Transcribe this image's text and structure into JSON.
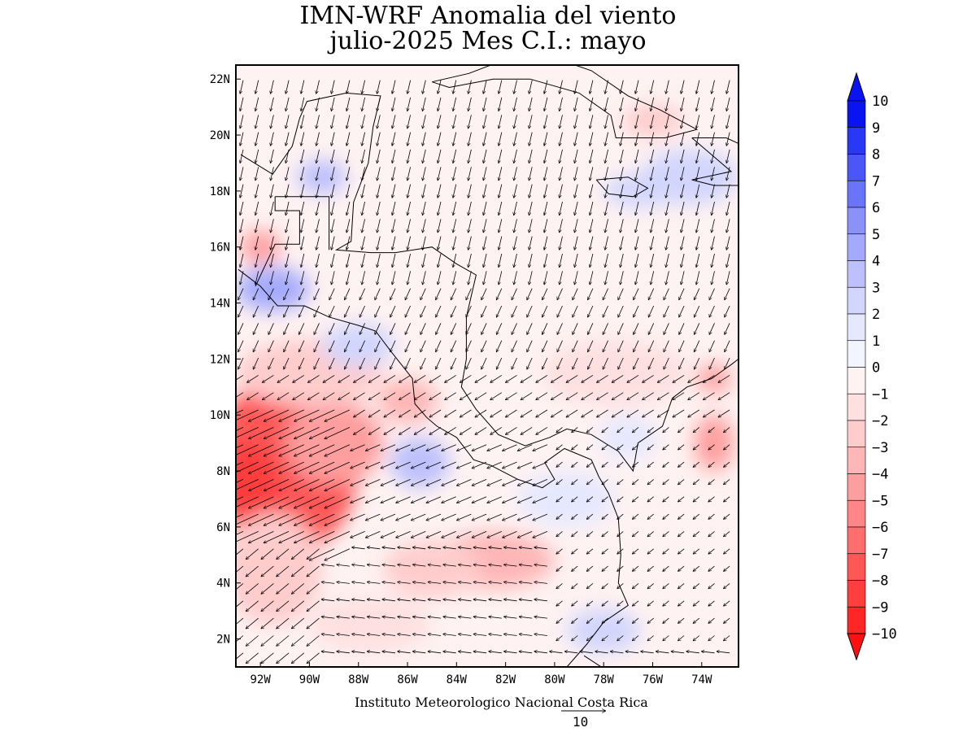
{
  "title_line1": "IMN-WRF Anomalia del viento",
  "title_line2": "julio-2025 Mes C.I.: mayo",
  "credit": "Instituto Meteorologico Nacional Costa Rica",
  "reference_vector": {
    "label": "10",
    "value": 10
  },
  "map": {
    "lon_range": [
      -93.0,
      -72.5
    ],
    "lat_range": [
      1.0,
      22.5
    ],
    "lon_ticks": [
      "92W",
      "90W",
      "88W",
      "86W",
      "84W",
      "82W",
      "80W",
      "78W",
      "76W",
      "74W"
    ],
    "lon_tick_values": [
      -92,
      -90,
      -88,
      -86,
      -84,
      -82,
      -80,
      -78,
      -76,
      -74
    ],
    "lat_ticks": [
      "2N",
      "4N",
      "6N",
      "8N",
      "10N",
      "12N",
      "14N",
      "16N",
      "18N",
      "20N",
      "22N"
    ],
    "lat_tick_values": [
      2,
      4,
      6,
      8,
      10,
      12,
      14,
      16,
      18,
      20,
      22
    ]
  },
  "colorbar": {
    "labels": [
      "10",
      "9",
      "8",
      "7",
      "6",
      "5",
      "4",
      "3",
      "2",
      "1",
      "0",
      "−1",
      "−2",
      "−3",
      "−4",
      "−5",
      "−6",
      "−7",
      "−8",
      "−9",
      "−10"
    ],
    "blue_colors": [
      "#0a14f0",
      "#2838f4",
      "#4a56f6",
      "#6a74f8",
      "#8a92fa",
      "#a4aafb",
      "#bcc0fc",
      "#d2d6fd",
      "#e6e8fe",
      "#f2f4ff"
    ],
    "red_colors": [
      "#fff2f2",
      "#ffe0e0",
      "#ffcccc",
      "#ffb6b6",
      "#ff9e9e",
      "#ff8686",
      "#ff6e6e",
      "#ff5656",
      "#ff3e3e",
      "#ff2626"
    ],
    "min_color": "#ff1010",
    "max_color": "#0a14f0"
  },
  "anomaly_patches": [
    {
      "lon": -91.0,
      "lat": 8.2,
      "rlon": 3.0,
      "rlat": 3.2,
      "value": -7
    },
    {
      "lon": -92.5,
      "lat": 7.5,
      "rlon": 1.2,
      "rlat": 1.5,
      "value": -8
    },
    {
      "lon": -89.0,
      "lat": 9.0,
      "rlon": 2.0,
      "rlat": 1.5,
      "value": -4
    },
    {
      "lon": -90.0,
      "lat": 11.5,
      "rlon": 3.0,
      "rlat": 1.2,
      "value": -2
    },
    {
      "lon": -91.5,
      "lat": 4.5,
      "rlon": 2.0,
      "rlat": 2.0,
      "value": -2
    },
    {
      "lon": -85.5,
      "lat": 8.3,
      "rlon": 1.2,
      "rlat": 0.9,
      "value": 3
    },
    {
      "lon": -91.5,
      "lat": 14.5,
      "rlon": 1.5,
      "rlat": 0.8,
      "value": 4
    },
    {
      "lon": -88.0,
      "lat": 12.5,
      "rlon": 1.5,
      "rlat": 0.8,
      "value": 2
    },
    {
      "lon": -86.0,
      "lat": 10.5,
      "rlon": 1.2,
      "rlat": 0.8,
      "value": -3
    },
    {
      "lon": -82.5,
      "lat": 4.8,
      "rlon": 2.5,
      "rlat": 1.0,
      "value": -3
    },
    {
      "lon": -85.0,
      "lat": 4.5,
      "rlon": 2.0,
      "rlat": 1.0,
      "value": -2
    },
    {
      "lon": -77.5,
      "lat": 11.5,
      "rlon": 3.0,
      "rlat": 1.2,
      "value": -1
    },
    {
      "lon": -73.5,
      "lat": 11.3,
      "rlon": 0.7,
      "rlat": 0.5,
      "value": -4
    },
    {
      "lon": -73.5,
      "lat": 9.0,
      "rlon": 0.8,
      "rlat": 1.0,
      "value": -4
    },
    {
      "lon": -77.0,
      "lat": 9.2,
      "rlon": 1.2,
      "rlat": 0.8,
      "value": 1
    },
    {
      "lon": -76.5,
      "lat": 18.0,
      "rlon": 1.5,
      "rlat": 0.6,
      "value": 2
    },
    {
      "lon": -74.5,
      "lat": 18.5,
      "rlon": 2.0,
      "rlat": 1.0,
      "value": 2
    },
    {
      "lon": -89.5,
      "lat": 18.5,
      "rlon": 1.0,
      "rlat": 0.6,
      "value": 3
    },
    {
      "lon": -92.0,
      "lat": 16.0,
      "rlon": 0.8,
      "rlat": 0.6,
      "value": -4
    },
    {
      "lon": -76.0,
      "lat": 20.5,
      "rlon": 1.2,
      "rlat": 0.6,
      "value": -2
    },
    {
      "lon": -78.0,
      "lat": 2.3,
      "rlon": 1.5,
      "rlat": 0.8,
      "value": 2
    },
    {
      "lon": -87.5,
      "lat": 2.5,
      "rlon": 2.5,
      "rlat": 1.0,
      "value": -1
    },
    {
      "lon": -79.5,
      "lat": 7.0,
      "rlon": 2.0,
      "rlat": 1.0,
      "value": 1
    }
  ],
  "coastlines": [
    {
      "name": "Mexico/Central America west coast",
      "points": [
        [
          -92.8,
          19.3
        ],
        [
          -91.5,
          18.6
        ],
        [
          -90.7,
          19.6
        ],
        [
          -90.4,
          20.6
        ],
        [
          -90.1,
          21.2
        ],
        [
          -88.5,
          21.5
        ],
        [
          -87.1,
          21.4
        ],
        [
          -87.4,
          20.3
        ],
        [
          -87.6,
          19.0
        ],
        [
          -88.2,
          17.6
        ],
        [
          -88.3,
          16.2
        ],
        [
          -88.9,
          15.9
        ],
        [
          -87.5,
          15.8
        ],
        [
          -86.5,
          15.8
        ],
        [
          -85.0,
          16.0
        ],
        [
          -84.0,
          15.4
        ],
        [
          -83.2,
          15.0
        ],
        [
          -83.6,
          13.5
        ],
        [
          -83.6,
          12.0
        ],
        [
          -83.8,
          11.0
        ],
        [
          -83.2,
          10.2
        ],
        [
          -82.3,
          9.3
        ],
        [
          -81.2,
          8.9
        ],
        [
          -80.2,
          9.2
        ],
        [
          -79.5,
          9.5
        ],
        [
          -78.5,
          9.3
        ],
        [
          -77.4,
          8.7
        ],
        [
          -76.8,
          8.0
        ],
        [
          -76.6,
          9.0
        ],
        [
          -75.6,
          9.6
        ],
        [
          -75.2,
          10.6
        ],
        [
          -74.6,
          11.0
        ],
        [
          -73.6,
          11.3
        ],
        [
          -72.8,
          11.8
        ],
        [
          -72.5,
          12.0
        ]
      ]
    },
    {
      "name": "Pacific coast",
      "points": [
        [
          -92.9,
          15.2
        ],
        [
          -92.0,
          14.6
        ],
        [
          -91.3,
          13.9
        ],
        [
          -90.2,
          13.9
        ],
        [
          -89.2,
          13.5
        ],
        [
          -88.0,
          13.2
        ],
        [
          -87.3,
          13.0
        ],
        [
          -86.7,
          12.3
        ],
        [
          -85.8,
          11.3
        ],
        [
          -85.7,
          10.4
        ],
        [
          -85.2,
          9.9
        ],
        [
          -84.8,
          9.6
        ],
        [
          -84.0,
          9.2
        ],
        [
          -83.3,
          8.4
        ],
        [
          -82.6,
          8.2
        ],
        [
          -81.5,
          7.7
        ],
        [
          -80.5,
          7.4
        ],
        [
          -80.0,
          7.7
        ],
        [
          -80.4,
          8.3
        ],
        [
          -79.6,
          8.8
        ],
        [
          -78.5,
          8.4
        ],
        [
          -78.2,
          7.8
        ],
        [
          -77.8,
          7.2
        ],
        [
          -77.4,
          6.3
        ],
        [
          -77.3,
          5.0
        ],
        [
          -77.4,
          4.0
        ],
        [
          -77.0,
          3.2
        ],
        [
          -78.0,
          2.6
        ],
        [
          -78.7,
          1.8
        ],
        [
          -79.5,
          1.0
        ]
      ]
    },
    {
      "name": "Cuba",
      "points": [
        [
          -85.0,
          21.9
        ],
        [
          -83.5,
          22.2
        ],
        [
          -82.0,
          22.7
        ],
        [
          -80.5,
          22.9
        ],
        [
          -78.5,
          22.3
        ],
        [
          -77.0,
          21.4
        ],
        [
          -75.7,
          20.9
        ],
        [
          -74.2,
          20.2
        ],
        [
          -75.5,
          19.9
        ],
        [
          -77.5,
          19.9
        ],
        [
          -77.7,
          20.7
        ],
        [
          -79.0,
          21.5
        ],
        [
          -81.0,
          22.0
        ],
        [
          -82.5,
          22.0
        ],
        [
          -84.3,
          21.7
        ],
        [
          -85.0,
          21.9
        ]
      ]
    },
    {
      "name": "Jamaica",
      "points": [
        [
          -78.3,
          18.4
        ],
        [
          -77.0,
          18.5
        ],
        [
          -76.2,
          18.1
        ],
        [
          -76.8,
          17.8
        ],
        [
          -77.8,
          17.9
        ],
        [
          -78.3,
          18.4
        ]
      ]
    },
    {
      "name": "Hispaniola",
      "points": [
        [
          -74.4,
          19.9
        ],
        [
          -73.0,
          19.9
        ],
        [
          -72.5,
          19.7
        ],
        [
          -72.5,
          18.2
        ],
        [
          -73.5,
          18.2
        ],
        [
          -74.4,
          18.4
        ],
        [
          -72.8,
          18.7
        ],
        [
          -73.2,
          19.0
        ],
        [
          -74.4,
          19.9
        ]
      ]
    },
    {
      "name": "Colombia-Ecuador border",
      "points": [
        [
          -78.8,
          1.4
        ],
        [
          -77.4,
          0.6
        ],
        [
          -75.5,
          0.0
        ]
      ]
    },
    {
      "name": "Belize/Guatemala border",
      "points": [
        [
          -91.4,
          17.8
        ],
        [
          -89.2,
          17.8
        ],
        [
          -89.2,
          15.9
        ]
      ]
    },
    {
      "name": "Mexico-Guatemala border",
      "points": [
        [
          -92.2,
          14.6
        ],
        [
          -91.4,
          16.1
        ],
        [
          -90.4,
          16.1
        ],
        [
          -90.4,
          17.3
        ],
        [
          -91.4,
          17.3
        ],
        [
          -91.4,
          17.8
        ]
      ]
    }
  ]
}
